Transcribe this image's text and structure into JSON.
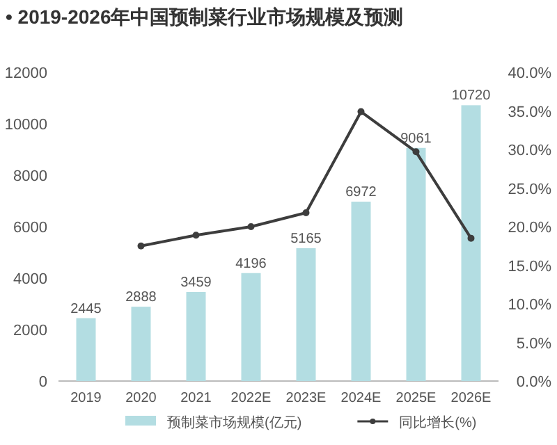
{
  "chart_data": {
    "type": "bar",
    "title": "• 2019-2026年中国预制菜行业市场规模及预测",
    "categories": [
      "2019",
      "2020",
      "2021",
      "2022E",
      "2023E",
      "2024E",
      "2025E",
      "2026E"
    ],
    "series": [
      {
        "name": "预制菜市场规模(亿元)",
        "color": "#b3dde2",
        "values": [
          2445,
          2888,
          3459,
          4196,
          5165,
          6972,
          9061,
          10720
        ],
        "value_labels": [
          "2445",
          "2888",
          "3459",
          "4196",
          "5165",
          "6972",
          "9061",
          "10720"
        ]
      },
      {
        "name": "同比增长(%)",
        "type": "line",
        "axis": "y2",
        "color": "#3d3d3d",
        "marker": "circle",
        "values": [
          null,
          17.5,
          18.9,
          20.0,
          21.8,
          34.9,
          29.7,
          18.5
        ]
      }
    ],
    "ylim": [
      0,
      12000
    ],
    "yticks": [
      0,
      2000,
      4000,
      6000,
      8000,
      10000,
      12000
    ],
    "y2lim": [
      0,
      40
    ],
    "y2ticks": [
      {
        "value": 0,
        "label": "0.0%"
      },
      {
        "value": 5,
        "label": "5.0%"
      },
      {
        "value": 10,
        "label": "10.0%"
      },
      {
        "value": 15,
        "label": "15.0%"
      },
      {
        "value": 20,
        "label": "20.0%"
      },
      {
        "value": 25,
        "label": "25.0%"
      },
      {
        "value": 30,
        "label": "30.0%"
      },
      {
        "value": 35,
        "label": "35.0%"
      },
      {
        "value": 40,
        "label": "40.0%"
      }
    ],
    "grid": false,
    "legend": "bottom"
  }
}
